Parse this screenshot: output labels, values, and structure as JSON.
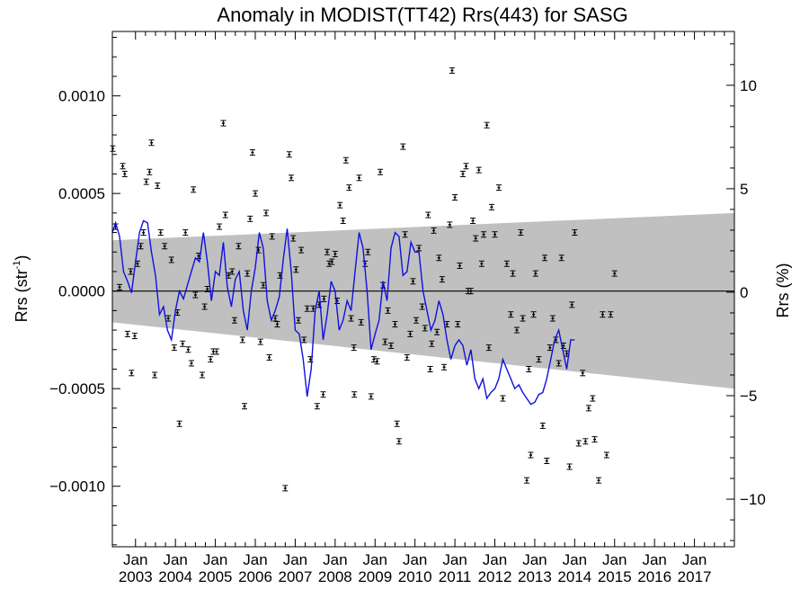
{
  "chart_data": {
    "type": "scatter",
    "title": "Anomaly in MODIST(TT42) Rrs(443) for SASG",
    "ylabel_main": "Rrs (str",
    "ylabel_sup": "-1",
    "ylabel_close": ")",
    "ylabel_right": "Rrs (%)",
    "ylim": [
      -0.00131,
      0.00133
    ],
    "ylim_right": [
      -12.3,
      12.6
    ],
    "xlim": [
      2002.42,
      2018.0
    ],
    "grid": false,
    "left_ticks": [
      {
        "value": 0.001,
        "label": "0.0010"
      },
      {
        "value": 0.0005,
        "label": "0.0005"
      },
      {
        "value": 0.0,
        "label": "0.0000"
      },
      {
        "value": -0.0005,
        "label": "−0.0005"
      },
      {
        "value": -0.001,
        "label": "−0.0010"
      }
    ],
    "right_ticks": [
      {
        "value": 10,
        "label": "10"
      },
      {
        "value": 5,
        "label": "5"
      },
      {
        "value": 0,
        "label": "0"
      },
      {
        "value": -5,
        "label": "−5"
      },
      {
        "value": -10,
        "label": "−10"
      }
    ],
    "x_ticks": [
      {
        "value": 2003.0,
        "label": "Jan",
        "year": "2003"
      },
      {
        "value": 2004.0,
        "label": "Jan",
        "year": "2004"
      },
      {
        "value": 2005.0,
        "label": "Jan",
        "year": "2005"
      },
      {
        "value": 2006.0,
        "label": "Jan",
        "year": "2006"
      },
      {
        "value": 2007.0,
        "label": "Jan",
        "year": "2007"
      },
      {
        "value": 2008.0,
        "label": "Jan",
        "year": "2008"
      },
      {
        "value": 2009.0,
        "label": "Jan",
        "year": "2009"
      },
      {
        "value": 2010.0,
        "label": "Jan",
        "year": "2010"
      },
      {
        "value": 2011.0,
        "label": "Jan",
        "year": "2011"
      },
      {
        "value": 2012.0,
        "label": "Jan",
        "year": "2012"
      },
      {
        "value": 2013.0,
        "label": "Jan",
        "year": "2013"
      },
      {
        "value": 2014.0,
        "label": "Jan",
        "year": "2014"
      },
      {
        "value": 2015.0,
        "label": "Jan",
        "year": "2015"
      },
      {
        "value": 2016.0,
        "label": "Jan",
        "year": "2016"
      },
      {
        "value": 2017.0,
        "label": "Jan",
        "year": "2017"
      }
    ],
    "band": {
      "x": [
        2002.42,
        2018.0
      ],
      "upper": [
        0.00026,
        0.0004
      ],
      "lower": [
        -0.00016,
        -0.0005
      ],
      "color": "#c0c0c0"
    },
    "points": [
      [
        2002.43,
        0.00073
      ],
      [
        2002.5,
        0.00033
      ],
      [
        2002.6,
        2e-05
      ],
      [
        2002.68,
        0.00064
      ],
      [
        2002.73,
        0.0006
      ],
      [
        2002.8,
        -0.00022
      ],
      [
        2002.88,
        0.0001
      ],
      [
        2002.9,
        -0.00042
      ],
      [
        2002.98,
        -0.00023
      ],
      [
        2003.05,
        0.00014
      ],
      [
        2003.13,
        0.00023
      ],
      [
        2003.2,
        0.0003
      ],
      [
        2003.27,
        0.00056
      ],
      [
        2003.35,
        0.00061
      ],
      [
        2003.4,
        0.00076
      ],
      [
        2003.48,
        -0.00043
      ],
      [
        2003.55,
        0.00054
      ],
      [
        2003.63,
        0.0003
      ],
      [
        2003.73,
        0.00023
      ],
      [
        2003.82,
        -0.00014
      ],
      [
        2003.9,
        0.00016
      ],
      [
        2003.97,
        -0.00029
      ],
      [
        2004.05,
        -0.00011
      ],
      [
        2004.1,
        -0.00068
      ],
      [
        2004.18,
        -0.00027
      ],
      [
        2004.25,
        0.0003
      ],
      [
        2004.32,
        -0.0003
      ],
      [
        2004.4,
        -0.00037
      ],
      [
        2004.45,
        0.00052
      ],
      [
        2004.5,
        -2e-05
      ],
      [
        2004.58,
        0.00018
      ],
      [
        2004.67,
        -0.00043
      ],
      [
        2004.73,
        -8e-05
      ],
      [
        2004.8,
        1e-05
      ],
      [
        2004.88,
        -0.00035
      ],
      [
        2004.95,
        -0.00031
      ],
      [
        2005.03,
        -0.00031
      ],
      [
        2005.1,
        0.00033
      ],
      [
        2005.2,
        0.00086
      ],
      [
        2005.25,
        0.00039
      ],
      [
        2005.33,
        8e-05
      ],
      [
        2005.42,
        0.0001
      ],
      [
        2005.48,
        -0.00015
      ],
      [
        2005.58,
        0.00023
      ],
      [
        2005.68,
        -0.00025
      ],
      [
        2005.73,
        -0.00059
      ],
      [
        2005.8,
        9e-05
      ],
      [
        2005.87,
        0.00037
      ],
      [
        2005.93,
        0.00071
      ],
      [
        2006.0,
        0.0005
      ],
      [
        2006.08,
        0.00021
      ],
      [
        2006.13,
        -0.00026
      ],
      [
        2006.2,
        3e-05
      ],
      [
        2006.27,
        0.0004
      ],
      [
        2006.35,
        -0.00034
      ],
      [
        2006.42,
        0.00028
      ],
      [
        2006.5,
        -0.00014
      ],
      [
        2006.55,
        -0.00017
      ],
      [
        2006.62,
        8e-05
      ],
      [
        2006.75,
        -0.00101
      ],
      [
        2006.85,
        0.0007
      ],
      [
        2006.9,
        0.00058
      ],
      [
        2006.95,
        0.00027
      ],
      [
        2007.02,
        0.00011
      ],
      [
        2007.08,
        -0.00015
      ],
      [
        2007.15,
        0.00021
      ],
      [
        2007.22,
        -0.00025
      ],
      [
        2007.3,
        -9e-05
      ],
      [
        2007.38,
        -0.00035
      ],
      [
        2007.45,
        -9e-05
      ],
      [
        2007.55,
        -0.00059
      ],
      [
        2007.6,
        -7e-05
      ],
      [
        2007.7,
        -0.00053
      ],
      [
        2007.72,
        -4e-05
      ],
      [
        2007.8,
        0.0002
      ],
      [
        2007.85,
        0.00014
      ],
      [
        2007.92,
        0.00015
      ],
      [
        2008.0,
        0.00019
      ],
      [
        2008.05,
        -5e-05
      ],
      [
        2008.12,
        0.00044
      ],
      [
        2008.2,
        0.00036
      ],
      [
        2008.27,
        0.00067
      ],
      [
        2008.35,
        0.00053
      ],
      [
        2008.4,
        -0.00014
      ],
      [
        2008.47,
        -0.00029
      ],
      [
        2008.48,
        -0.00053
      ],
      [
        2008.6,
        0.00058
      ],
      [
        2008.65,
        -0.00016
      ],
      [
        2008.75,
        0.00014
      ],
      [
        2008.82,
        0.0002
      ],
      [
        2008.9,
        -0.00054
      ],
      [
        2008.97,
        -0.00035
      ],
      [
        2009.05,
        -0.00036
      ],
      [
        2009.13,
        0.00061
      ],
      [
        2009.2,
        3e-05
      ],
      [
        2009.25,
        -0.00026
      ],
      [
        2009.32,
        -0.0001
      ],
      [
        2009.4,
        -0.00028
      ],
      [
        2009.5,
        -0.00017
      ],
      [
        2009.55,
        -0.00068
      ],
      [
        2009.6,
        -0.00077
      ],
      [
        2009.7,
        0.00074
      ],
      [
        2009.75,
        0.00029
      ],
      [
        2009.8,
        -0.00034
      ],
      [
        2009.88,
        -0.00022
      ],
      [
        2009.95,
        5e-05
      ],
      [
        2010.03,
        -0.00015
      ],
      [
        2010.1,
        0.00022
      ],
      [
        2010.18,
        -8e-05
      ],
      [
        2010.25,
        -0.00019
      ],
      [
        2010.33,
        0.00039
      ],
      [
        2010.38,
        -0.0004
      ],
      [
        2010.42,
        -0.00027
      ],
      [
        2010.47,
        0.00031
      ],
      [
        2010.55,
        -0.00021
      ],
      [
        2010.6,
        0.00017
      ],
      [
        2010.68,
        6e-05
      ],
      [
        2010.73,
        -0.00039
      ],
      [
        2010.8,
        -0.00017
      ],
      [
        2010.87,
        0.00034
      ],
      [
        2010.93,
        0.00113
      ],
      [
        2011.0,
        0.00048
      ],
      [
        2011.07,
        -0.00017
      ],
      [
        2011.12,
        0.00013
      ],
      [
        2011.2,
        0.0006
      ],
      [
        2011.28,
        0.00064
      ],
      [
        2011.33,
        0.0
      ],
      [
        2011.4,
        0.0
      ],
      [
        2011.45,
        0.00036
      ],
      [
        2011.52,
        0.00027
      ],
      [
        2011.6,
        0.00062
      ],
      [
        2011.67,
        0.00014
      ],
      [
        2011.72,
        0.00029
      ],
      [
        2011.8,
        0.00085
      ],
      [
        2011.85,
        -0.00029
      ],
      [
        2011.92,
        0.00043
      ],
      [
        2012.0,
        0.00029
      ],
      [
        2012.1,
        0.00053
      ],
      [
        2012.2,
        -0.00055
      ],
      [
        2012.3,
        0.00014
      ],
      [
        2012.4,
        -0.00012
      ],
      [
        2012.45,
        9e-05
      ],
      [
        2012.55,
        -0.0002
      ],
      [
        2012.65,
        0.0003
      ],
      [
        2012.7,
        -0.00014
      ],
      [
        2012.8,
        -0.00097
      ],
      [
        2012.85,
        -0.0004
      ],
      [
        2012.9,
        -0.00084
      ],
      [
        2012.97,
        -0.00012
      ],
      [
        2013.02,
        9e-05
      ],
      [
        2013.1,
        -0.00035
      ],
      [
        2013.2,
        -0.00069
      ],
      [
        2013.25,
        0.00017
      ],
      [
        2013.3,
        -0.00087
      ],
      [
        2013.38,
        -0.00029
      ],
      [
        2013.45,
        -0.00014
      ],
      [
        2013.53,
        -0.00025
      ],
      [
        2013.6,
        -0.00037
      ],
      [
        2013.67,
        0.00017
      ],
      [
        2013.72,
        -0.00028
      ],
      [
        2013.8,
        -0.00032
      ],
      [
        2013.87,
        -0.0009
      ],
      [
        2013.93,
        -7e-05
      ],
      [
        2014.0,
        0.0003
      ],
      [
        2014.1,
        -0.00078
      ],
      [
        2014.2,
        -0.00042
      ],
      [
        2014.27,
        -0.00077
      ],
      [
        2014.35,
        -0.0006
      ],
      [
        2014.45,
        -0.00055
      ],
      [
        2014.5,
        -0.00076
      ],
      [
        2014.6,
        -0.00097
      ],
      [
        2014.7,
        -0.00012
      ],
      [
        2014.8,
        -0.00084
      ],
      [
        2014.9,
        -0.00012
      ],
      [
        2015.0,
        9e-05
      ]
    ],
    "smooth_line": {
      "color": "#1010e0",
      "x": [
        2002.42,
        2002.5,
        2002.6,
        2002.7,
        2002.8,
        2002.9,
        2003.0,
        2003.1,
        2003.2,
        2003.3,
        2003.4,
        2003.5,
        2003.6,
        2003.7,
        2003.8,
        2003.9,
        2004.0,
        2004.1,
        2004.2,
        2004.3,
        2004.4,
        2004.5,
        2004.6,
        2004.7,
        2004.8,
        2004.9,
        2005.0,
        2005.1,
        2005.2,
        2005.3,
        2005.4,
        2005.5,
        2005.6,
        2005.7,
        2005.8,
        2005.9,
        2006.0,
        2006.1,
        2006.2,
        2006.3,
        2006.4,
        2006.5,
        2006.6,
        2006.7,
        2006.8,
        2006.9,
        2007.0,
        2007.1,
        2007.2,
        2007.3,
        2007.4,
        2007.5,
        2007.6,
        2007.7,
        2007.8,
        2007.9,
        2008.0,
        2008.1,
        2008.2,
        2008.3,
        2008.4,
        2008.5,
        2008.6,
        2008.7,
        2008.8,
        2008.9,
        2009.0,
        2009.1,
        2009.2,
        2009.3,
        2009.4,
        2009.5,
        2009.6,
        2009.7,
        2009.8,
        2009.9,
        2010.0,
        2010.1,
        2010.2,
        2010.3,
        2010.4,
        2010.5,
        2010.6,
        2010.7,
        2010.8,
        2010.9,
        2011.0,
        2011.1,
        2011.2,
        2011.3,
        2011.4,
        2011.5,
        2011.6,
        2011.7,
        2011.8,
        2011.9,
        2012.0,
        2012.1,
        2012.2,
        2012.3,
        2012.4,
        2012.5,
        2012.6,
        2012.7,
        2012.8,
        2012.9,
        2013.0,
        2013.1,
        2013.2,
        2013.3,
        2013.4,
        2013.5,
        2013.6,
        2013.7,
        2013.8,
        2013.9,
        2014.0
      ],
      "y": [
        0.0003,
        0.00035,
        0.00028,
        0.0001,
        5e-05,
        -1e-05,
        0.00015,
        0.0003,
        0.00036,
        0.00035,
        0.0002,
        8e-05,
        -0.00012,
        -8e-05,
        -0.0002,
        -0.00025,
        -0.0001,
        0.0,
        -4e-05,
        3e-05,
        0.0001,
        0.00017,
        0.00015,
        0.0003,
        0.00015,
        -5e-05,
        0.0001,
        8e-05,
        0.00025,
        2e-05,
        -8e-05,
        6e-05,
        0.0001,
        -0.0001,
        -0.0002,
        0.0,
        0.00012,
        0.0003,
        0.00022,
        -5e-05,
        -0.00015,
        -0.0001,
        -3e-05,
        0.00016,
        0.00032,
        0.0001,
        -0.0002,
        -0.00022,
        -0.00035,
        -0.00054,
        -0.0004,
        -0.0001,
        0.0,
        -0.00025,
        -0.00012,
        5e-05,
        0.0,
        -0.0002,
        -0.00015,
        -5e-05,
        -0.0001,
        0.0001,
        0.0003,
        0.00022,
        0.0,
        -0.0003,
        -0.00022,
        -0.00015,
        5e-05,
        -5e-05,
        0.00022,
        0.0003,
        0.00028,
        8e-05,
        0.0001,
        0.00025,
        0.0002,
        0.0002,
        0.0,
        -0.0001,
        -0.0002,
        -0.00015,
        -5e-05,
        -0.00012,
        -0.00025,
        -0.00035,
        -0.00028,
        -0.00025,
        -0.00028,
        -0.00038,
        -0.0003,
        -0.00045,
        -0.0005,
        -0.00045,
        -0.00055,
        -0.00052,
        -0.0005,
        -0.00045,
        -0.00035,
        -0.0004,
        -0.00045,
        -0.0005,
        -0.00048,
        -0.00052,
        -0.00055,
        -0.00058,
        -0.00057,
        -0.00053,
        -0.00052,
        -0.00045,
        -0.00035,
        -0.00025,
        -0.0002,
        -0.0003,
        -0.0004,
        -0.00025,
        -0.00025
      ]
    }
  }
}
